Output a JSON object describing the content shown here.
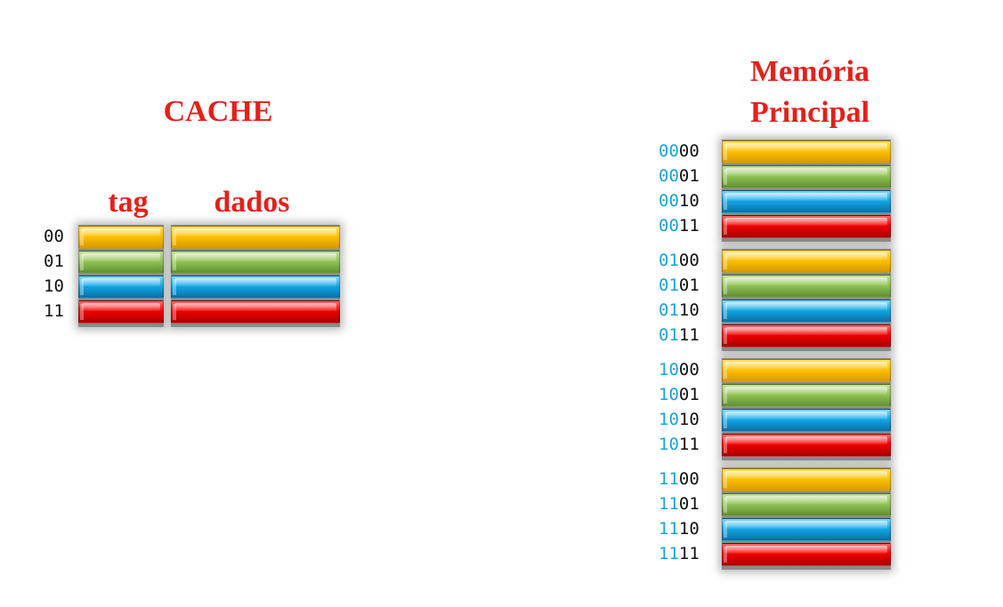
{
  "cache": {
    "title": "CACHE",
    "tag_header": "tag",
    "data_header": "dados",
    "rows": [
      {
        "index": "00",
        "color": "yellow"
      },
      {
        "index": "01",
        "color": "green"
      },
      {
        "index": "10",
        "color": "blue"
      },
      {
        "index": "11",
        "color": "red"
      }
    ]
  },
  "memory": {
    "title_line1": "Memória",
    "title_line2": "Principal",
    "blocks": [
      {
        "prefix": "00",
        "rows": [
          "00",
          "01",
          "10",
          "11"
        ]
      },
      {
        "prefix": "01",
        "rows": [
          "00",
          "01",
          "10",
          "11"
        ]
      },
      {
        "prefix": "10",
        "rows": [
          "00",
          "01",
          "10",
          "11"
        ]
      },
      {
        "prefix": "11",
        "rows": [
          "00",
          "01",
          "10",
          "11"
        ]
      }
    ]
  },
  "colors": {
    "title": "#e3211c",
    "prefix": "#1aa3d9",
    "yellow": "#ffc000",
    "green": "#92c456",
    "blue": "#11a8e8",
    "red": "#f20000"
  }
}
